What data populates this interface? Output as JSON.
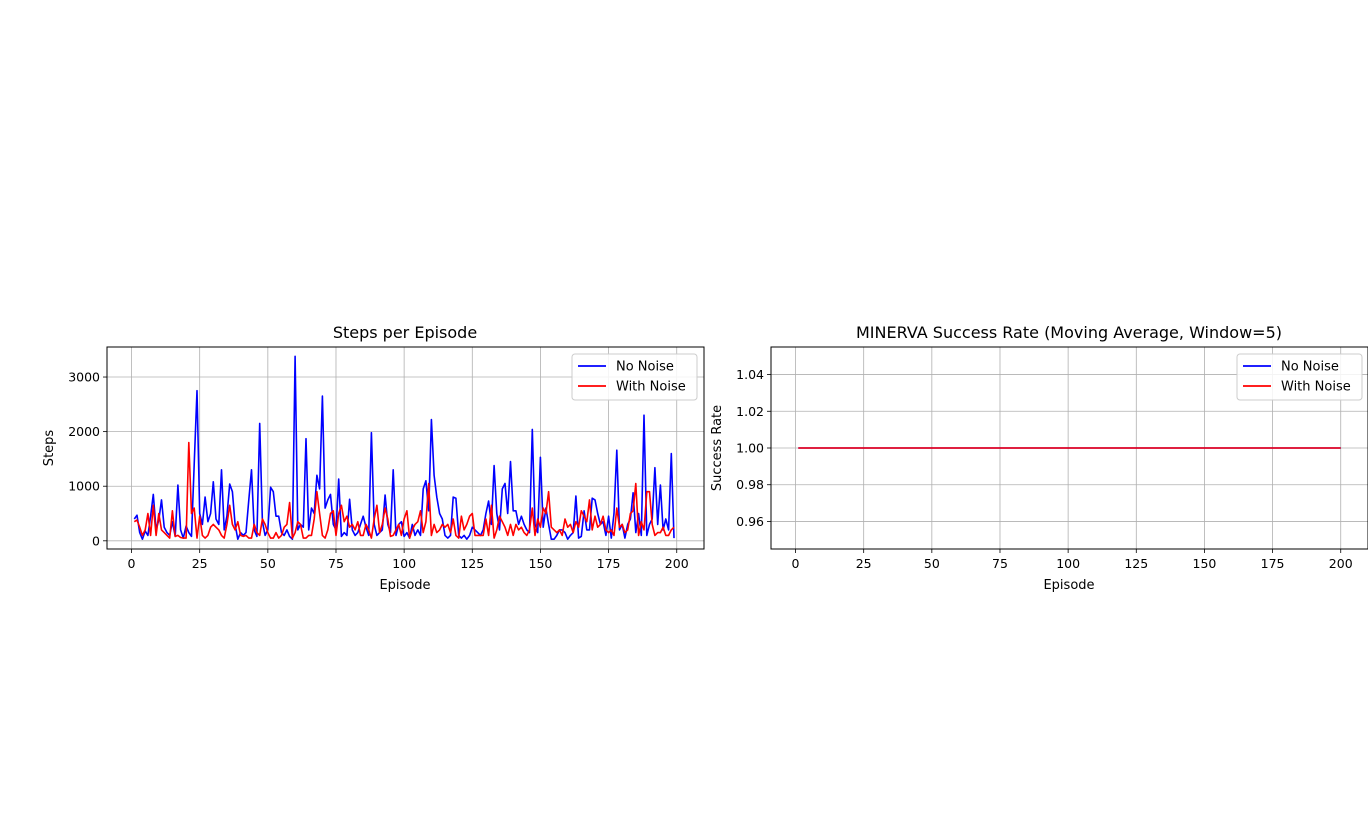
{
  "chart_data": [
    {
      "type": "line",
      "title": "Steps per Episode",
      "xlabel": "Episode",
      "ylabel": "Steps",
      "xlim": [
        -9,
        210
      ],
      "ylim": [
        -150,
        3550
      ],
      "xticks": [
        0,
        25,
        50,
        75,
        100,
        125,
        150,
        175,
        200
      ],
      "yticks": [
        0,
        1000,
        2000,
        3000
      ],
      "grid": true,
      "legend": "upper-right",
      "x_start": 1,
      "series": [
        {
          "name": "No Noise",
          "color": "#0000ff",
          "values": [
            400,
            470,
            150,
            30,
            180,
            100,
            450,
            850,
            200,
            380,
            750,
            250,
            150,
            100,
            350,
            80,
            1020,
            200,
            50,
            270,
            150,
            80,
            1400,
            2750,
            500,
            300,
            800,
            350,
            500,
            1080,
            400,
            300,
            1300,
            200,
            450,
            1040,
            900,
            300,
            30,
            150,
            100,
            150,
            750,
            1300,
            200,
            80,
            2150,
            350,
            100,
            200,
            980,
            900,
            450,
            450,
            150,
            100,
            200,
            80,
            30,
            3380,
            200,
            300,
            250,
            1870,
            200,
            600,
            500,
            1200,
            950,
            2650,
            600,
            750,
            850,
            300,
            200,
            1130,
            80,
            150,
            100,
            760,
            200,
            100,
            150,
            300,
            450,
            250,
            100,
            1980,
            300,
            100,
            150,
            200,
            840,
            300,
            150,
            1300,
            100,
            300,
            350,
            80,
            150,
            50,
            300,
            100,
            200,
            100,
            950,
            1100,
            550,
            2220,
            1200,
            800,
            500,
            400,
            100,
            50,
            100,
            800,
            780,
            100,
            50,
            100,
            30,
            100,
            250,
            200,
            150,
            100,
            200,
            500,
            730,
            300,
            1380,
            500,
            200,
            950,
            1050,
            500,
            1450,
            550,
            550,
            300,
            450,
            300,
            200,
            150,
            2040,
            300,
            150,
            1530,
            250,
            600,
            300,
            30,
            30,
            100,
            200,
            200,
            150,
            30,
            100,
            150,
            820,
            50,
            80,
            550,
            200,
            200,
            780,
            750,
            500,
            300,
            350,
            100,
            450,
            50,
            500,
            1660,
            200,
            300,
            50,
            300,
            400,
            880,
            150,
            500,
            100,
            2300,
            100,
            300,
            400,
            1340,
            300,
            1020,
            200,
            400,
            200,
            1600,
            50
          ]
        },
        {
          "name": "With Noise",
          "color": "#ff0000",
          "values": [
            350,
            380,
            250,
            100,
            200,
            500,
            100,
            650,
            100,
            500,
            200,
            150,
            100,
            50,
            550,
            80,
            100,
            60,
            50,
            50,
            1800,
            500,
            600,
            50,
            450,
            100,
            50,
            100,
            250,
            300,
            250,
            200,
            100,
            50,
            300,
            650,
            300,
            200,
            350,
            100,
            80,
            100,
            50,
            50,
            300,
            150,
            100,
            400,
            300,
            150,
            50,
            50,
            150,
            50,
            100,
            250,
            300,
            700,
            50,
            150,
            350,
            300,
            50,
            50,
            100,
            100,
            400,
            900,
            500,
            100,
            50,
            200,
            500,
            550,
            100,
            500,
            650,
            350,
            450,
            250,
            300,
            200,
            350,
            100,
            100,
            300,
            200,
            50,
            400,
            650,
            150,
            300,
            600,
            400,
            80,
            100,
            200,
            300,
            100,
            400,
            550,
            50,
            200,
            300,
            350,
            550,
            150,
            350,
            1050,
            100,
            300,
            150,
            200,
            300,
            250,
            300,
            150,
            400,
            100,
            50,
            450,
            200,
            300,
            450,
            500,
            100,
            100,
            100,
            100,
            400,
            100,
            650,
            50,
            200,
            450,
            350,
            250,
            100,
            300,
            100,
            300,
            200,
            250,
            150,
            100,
            200,
            600,
            100,
            400,
            250,
            600,
            500,
            900,
            250,
            200,
            150,
            200,
            100,
            400,
            250,
            300,
            150,
            350,
            250,
            550,
            450,
            350,
            750,
            200,
            450,
            250,
            300,
            450,
            200,
            150,
            200,
            100,
            600,
            250,
            300,
            150,
            200,
            500,
            550,
            1050,
            100,
            350,
            200,
            900,
            900,
            300,
            100,
            150,
            150,
            250,
            100,
            100,
            200,
            250
          ]
        }
      ]
    },
    {
      "type": "line",
      "title": "MINERVA Success Rate (Moving Average, Window=5)",
      "xlabel": "Episode",
      "ylabel": "Success Rate",
      "xlim": [
        -9,
        210
      ],
      "ylim": [
        0.945,
        1.055
      ],
      "xticks": [
        0,
        25,
        50,
        75,
        100,
        125,
        150,
        175,
        200
      ],
      "yticks": [
        0.96,
        0.98,
        1.0,
        1.02,
        1.04
      ],
      "ytick_labels": [
        "0.96",
        "0.98",
        "1.00",
        "1.02",
        "1.04"
      ],
      "grid": true,
      "legend": "upper-right",
      "series": [
        {
          "name": "No Noise",
          "color": "#0000ff",
          "x": [
            1,
            200
          ],
          "values": [
            1.0,
            1.0
          ]
        },
        {
          "name": "With Noise",
          "color": "#ff0000",
          "x": [
            1,
            200
          ],
          "values": [
            1.0,
            1.0
          ]
        }
      ]
    }
  ]
}
